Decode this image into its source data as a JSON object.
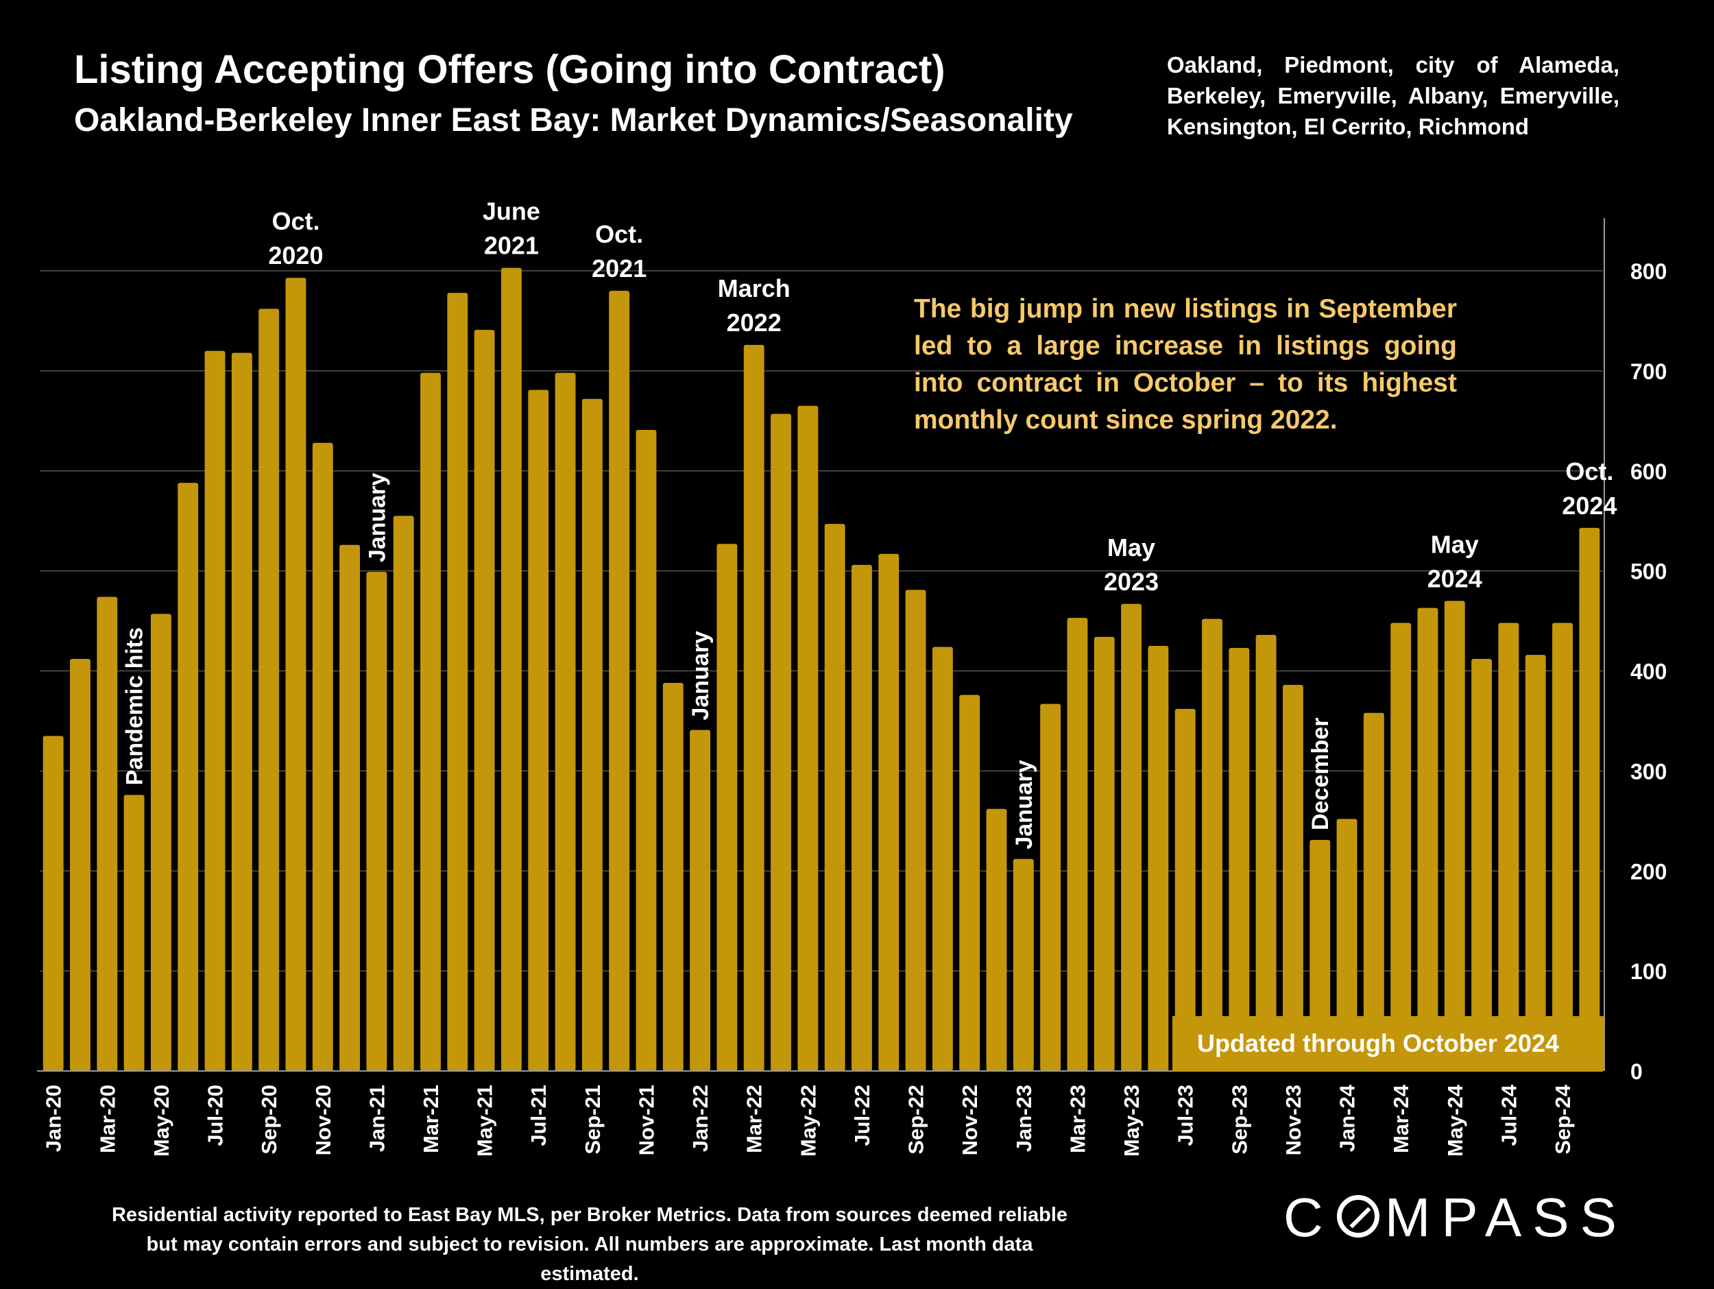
{
  "title": "Listing Accepting Offers (Going into Contract)",
  "subtitle": "Oakland-Berkeley Inner East Bay: Market Dynamics/Seasonality",
  "region": "Oakland, Piedmont, city of Alameda, Berkeley, Emeryville, Albany, Emeryville, Kensington, El Cerrito, Richmond",
  "callout": "The big jump in new listings in September led to a large increase in listings going into contract in October – to its highest monthly count since spring 2022.",
  "updated": "Updated through October 2024",
  "footnote": "Residential activity reported to East Bay MLS, per Broker Metrics. Data from sources deemed reliable but may contain errors and subject to revision. All numbers are approximate. Last month data estimated.",
  "logo": {
    "before": "C",
    "after": "MPASS",
    "icon": "compass-o-icon"
  },
  "colors": {
    "bar": "#c4960a",
    "grid": "#555555",
    "callout": "#f6c96a",
    "background": "#000000",
    "text": "#ffffff"
  },
  "chart_data": {
    "type": "bar",
    "title": "Listing Accepting Offers (Going into Contract)",
    "ylim": [
      0,
      800
    ],
    "yticks": [
      0,
      100,
      200,
      300,
      400,
      500,
      600,
      700,
      800
    ],
    "y_axis_side": "right",
    "grid": true,
    "categories": [
      "Jan-20",
      "Feb-20",
      "Mar-20",
      "Apr-20",
      "May-20",
      "Jun-20",
      "Jul-20",
      "Aug-20",
      "Sep-20",
      "Oct-20",
      "Nov-20",
      "Dec-20",
      "Jan-21",
      "Feb-21",
      "Mar-21",
      "Apr-21",
      "May-21",
      "Jun-21",
      "Jul-21",
      "Aug-21",
      "Sep-21",
      "Oct-21",
      "Nov-21",
      "Dec-21",
      "Jan-22",
      "Feb-22",
      "Mar-22",
      "Apr-22",
      "May-22",
      "Jun-22",
      "Jul-22",
      "Aug-22",
      "Sep-22",
      "Oct-22",
      "Nov-22",
      "Dec-22",
      "Jan-23",
      "Feb-23",
      "Mar-23",
      "Apr-23",
      "May-23",
      "Jun-23",
      "Jul-23",
      "Aug-23",
      "Sep-23",
      "Oct-23",
      "Nov-23",
      "Dec-23",
      "Jan-24",
      "Feb-24",
      "Mar-24",
      "Apr-24",
      "May-24",
      "Jun-24",
      "Jul-24",
      "Aug-24",
      "Sep-24",
      "Oct-24"
    ],
    "x_tick_labels": [
      "Jan-20",
      "Mar-20",
      "May-20",
      "Jul-20",
      "Sep-20",
      "Nov-20",
      "Jan-21",
      "Mar-21",
      "May-21",
      "Jul-21",
      "Sep-21",
      "Nov-21",
      "Jan-22",
      "Mar-22",
      "May-22",
      "Jul-22",
      "Sep-22",
      "Nov-22",
      "Jan-23",
      "Mar-23",
      "May-23",
      "Jul-23",
      "Sep-23",
      "Nov-23",
      "Jan-24",
      "Mar-24",
      "May-24",
      "Jul-24",
      "Sep-24"
    ],
    "values": [
      335,
      412,
      474,
      276,
      457,
      588,
      720,
      718,
      762,
      793,
      628,
      526,
      499,
      555,
      698,
      778,
      741,
      803,
      681,
      698,
      672,
      780,
      641,
      388,
      341,
      527,
      726,
      657,
      665,
      547,
      506,
      517,
      481,
      424,
      376,
      262,
      212,
      367,
      453,
      434,
      467,
      425,
      362,
      452,
      423,
      436,
      386,
      231,
      252,
      358,
      448,
      463,
      470,
      412,
      448,
      416,
      448,
      543
    ],
    "annotations": [
      {
        "index": 3,
        "text": "Pandemic hits",
        "rotated": true
      },
      {
        "index": 9,
        "lines": [
          "Oct.",
          "2020"
        ]
      },
      {
        "index": 12,
        "text": "January",
        "rotated": true
      },
      {
        "index": 17,
        "lines": [
          "June",
          "2021"
        ]
      },
      {
        "index": 21,
        "lines": [
          "Oct.",
          "2021"
        ]
      },
      {
        "index": 24,
        "text": "January",
        "rotated": true
      },
      {
        "index": 26,
        "lines": [
          "March",
          "2022"
        ]
      },
      {
        "index": 36,
        "text": "January",
        "rotated": true
      },
      {
        "index": 40,
        "lines": [
          "May",
          "2023"
        ]
      },
      {
        "index": 47,
        "text": "December",
        "rotated": true
      },
      {
        "index": 52,
        "lines": [
          "May",
          "2024"
        ]
      },
      {
        "index": 57,
        "lines": [
          "Oct.",
          "2024"
        ]
      }
    ]
  }
}
